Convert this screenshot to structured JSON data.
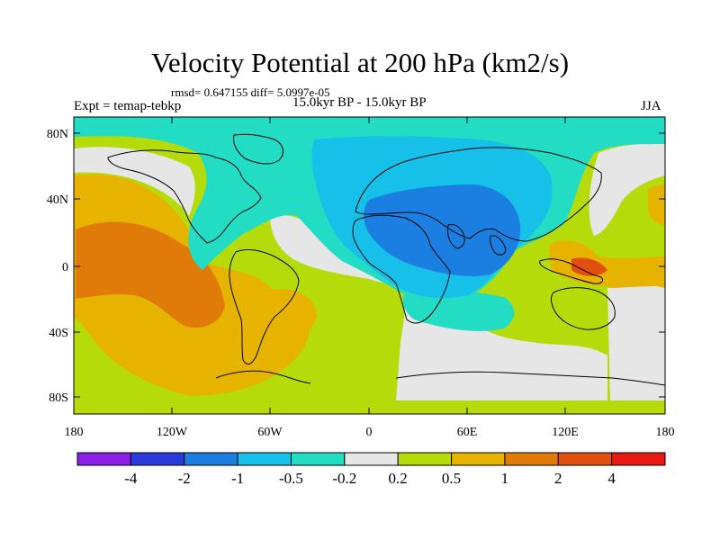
{
  "title": "Velocity Potential at 200 hPa (km2/s)",
  "stats": "rmsd= 0.647155 diff= 5.0997e-05",
  "experiment": "Expt = temap-tebkp",
  "period": "15.0kyr BP - 15.0kyr BP",
  "season": "JJA",
  "axes": {
    "lat_ticks": [
      "80N",
      "40N",
      "0",
      "40S",
      "80S"
    ],
    "lon_ticks": [
      "180",
      "120W",
      "60W",
      "0",
      "60E",
      "120E",
      "180"
    ]
  },
  "colorbar": {
    "labels": [
      "-4",
      "-2",
      "-1",
      "-0.5",
      "-0.2",
      "0.2",
      "0.5",
      "1",
      "2",
      "4"
    ],
    "colors": [
      "#8b1fe6",
      "#2a3bd9",
      "#1a7fe0",
      "#16c0e8",
      "#22dcc4",
      "#e6e6e6",
      "#b5dc0a",
      "#e6b300",
      "#e07a08",
      "#e0500c",
      "#e61a10"
    ]
  },
  "palette": {
    "blue_dark": "#1a7fe0",
    "blue_mid": "#16c0e8",
    "teal": "#22dcc4",
    "neutral": "#e6e6e6",
    "lime": "#b5dc0a",
    "amber": "#e6b300",
    "orange": "#e07a08",
    "red_orange": "#e0500c"
  }
}
